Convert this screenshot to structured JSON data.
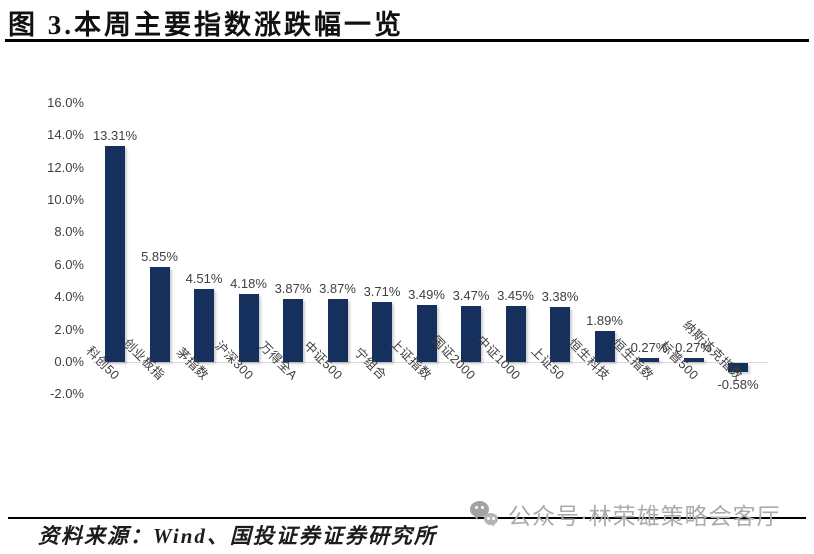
{
  "header": {
    "title": "图 3.本周主要指数涨跌幅一览"
  },
  "chart_data": {
    "type": "bar",
    "title": "本周主要指数涨跌幅一览",
    "categories": [
      "科创50",
      "创业板指",
      "茅指数",
      "沪深300",
      "万得全A",
      "中证500",
      "宁组合",
      "上证指数",
      "国证2000",
      "中证1000",
      "上证50",
      "恒生科技",
      "恒生指数",
      "标普500",
      "纳斯达克指数"
    ],
    "values": [
      13.31,
      5.85,
      4.51,
      4.18,
      3.87,
      3.87,
      3.71,
      3.49,
      3.47,
      3.45,
      3.38,
      1.89,
      0.27,
      0.27,
      -0.58
    ],
    "value_labels": [
      "13.31%",
      "5.85%",
      "4.51%",
      "4.18%",
      "3.87%",
      "3.87%",
      "3.71%",
      "3.49%",
      "3.47%",
      "3.45%",
      "3.38%",
      "1.89%",
      "0.27%",
      "0.27%",
      "-0.58%"
    ],
    "xlabel": "",
    "ylabel": "",
    "ylim": [
      -2,
      16
    ],
    "ytick_values": [
      16,
      14,
      12,
      10,
      8,
      6,
      4,
      2,
      0,
      -2
    ],
    "ytick_labels": [
      "16.0%",
      "14.0%",
      "12.0%",
      "10.0%",
      "8.0%",
      "6.0%",
      "4.0%",
      "2.0%",
      "0.0%",
      "-2.0%"
    ],
    "grid": false,
    "legend": false,
    "bar_color": "#16305E",
    "label_color": "#404040",
    "axis_line_color": "#d9d9d9"
  },
  "footer": {
    "source": "资料来源：Wind、国投证券证券研究所",
    "watermark": {
      "icon": "wechat-icon",
      "text": "公众号·林荣雄策略会客厅",
      "color": "#ababab"
    }
  }
}
